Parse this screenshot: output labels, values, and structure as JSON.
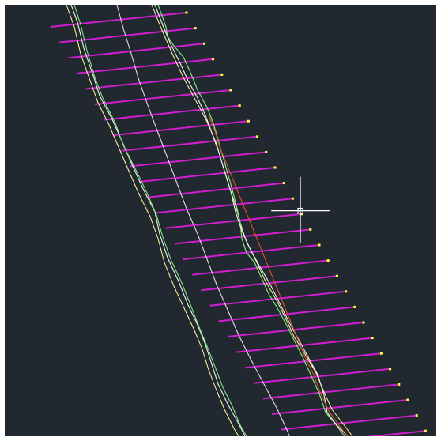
{
  "canvas": {
    "background": "#212830",
    "frame": "#ffffff"
  },
  "colors": {
    "section_line": "#d21ed2",
    "endpoint_marker": "#ffff3c",
    "centerline": "#e8d8ea",
    "offset_line_left": "#ffff96",
    "offset_line_right": "#ffff96",
    "bank_line_white": "#f4f4f0",
    "bank_line_green": "#78e878",
    "bank_line_red": "#e05030",
    "crosshair": "#ffffff"
  },
  "icons": {
    "cursor": "crosshair-cursor-icon",
    "pickbox": "pickbox-icon"
  }
}
